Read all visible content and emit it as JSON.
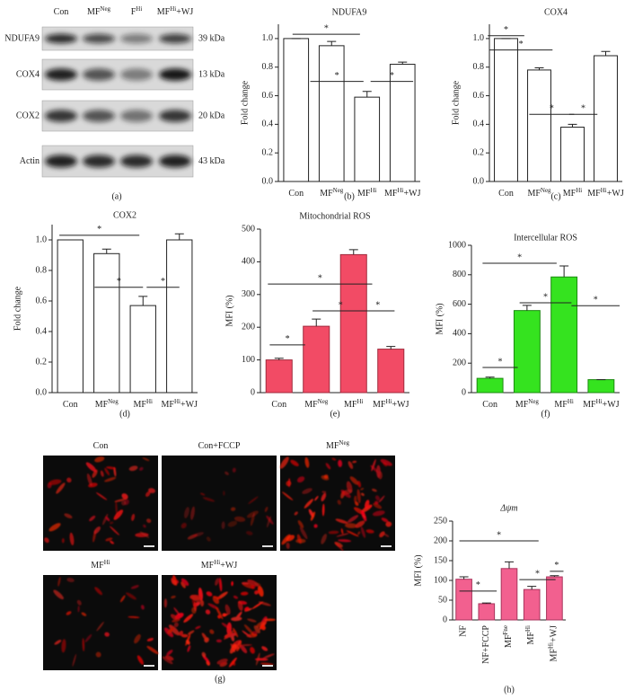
{
  "western_blot": {
    "panel": "(a)",
    "lanes": [
      {
        "base": "Con"
      },
      {
        "base": "MF",
        "sup": "Neg"
      },
      {
        "base": "F",
        "sup": "Hi"
      },
      {
        "base": "MF",
        "sup": "Hi",
        "rest": "+WJ"
      }
    ],
    "proteins": [
      "NDUFA9",
      "COX4",
      "COX2",
      "Actin"
    ],
    "sizes": [
      "39 kDa",
      "13 kDa",
      "20 kDa",
      "43 kDa"
    ]
  },
  "chart_data": [
    {
      "type": "bar",
      "panel": "(b)",
      "title": "NDUFA9",
      "ylabel": "Fold change",
      "categories": [
        {
          "base": "Con"
        },
        {
          "base": "MF",
          "sup": "Neg"
        },
        {
          "base": "MF",
          "sup": "Hi"
        },
        {
          "base": "MF",
          "sup": "Hi",
          "rest": "+WJ"
        }
      ],
      "values": [
        1.0,
        0.95,
        0.59,
        0.82
      ],
      "errors": [
        0,
        0.03,
        0.04,
        0.015
      ],
      "ylim": [
        0,
        1.1
      ],
      "yticks": [
        {
          "value": 0,
          "label": "0.0"
        },
        {
          "value": 0.2,
          "label": "0.2"
        },
        {
          "value": 0.4,
          "label": "0.4"
        },
        {
          "value": 0.6,
          "label": "0.6"
        },
        {
          "value": 0.8,
          "label": "0.8"
        },
        {
          "value": 1.0,
          "label": "1.0"
        }
      ],
      "color": "#ffffff",
      "edgecolor": "#222222",
      "annotations": [
        {
          "x1": -0.1,
          "x2": 1.8,
          "y": 1.03,
          "text": "*"
        },
        {
          "x1": 0.4,
          "x2": 1.9,
          "y": 0.7,
          "text": "*"
        },
        {
          "x1": 2.1,
          "x2": 3.3,
          "y": 0.7,
          "text": "*"
        }
      ]
    },
    {
      "type": "bar",
      "panel": "(c)",
      "title": "COX4",
      "ylabel": "Fold change",
      "categories": [
        {
          "base": "Con"
        },
        {
          "base": "MF",
          "sup": "Neg"
        },
        {
          "base": "MF",
          "sup": "Hi"
        },
        {
          "base": "MF",
          "sup": "Hi",
          "rest": "+WJ"
        }
      ],
      "values": [
        1.0,
        0.78,
        0.38,
        0.88
      ],
      "errors": [
        0,
        0.015,
        0.02,
        0.03
      ],
      "ylim": [
        0,
        1.1
      ],
      "yticks": [
        {
          "value": 0,
          "label": "0.0"
        },
        {
          "value": 0.2,
          "label": "0.2"
        },
        {
          "value": 0.4,
          "label": "0.4"
        },
        {
          "value": 0.6,
          "label": "0.6"
        },
        {
          "value": 0.8,
          "label": "0.8"
        },
        {
          "value": 1.0,
          "label": "1.0"
        }
      ],
      "color": "#ffffff",
      "edgecolor": "#222222",
      "annotations": [
        {
          "x1": -0.55,
          "x2": 0.55,
          "y": 1.02,
          "text": "*"
        },
        {
          "x1": -0.5,
          "x2": 1.4,
          "y": 0.92,
          "text": "*"
        },
        {
          "x1": 0.7,
          "x2": 2.05,
          "y": 0.47,
          "text": "*"
        },
        {
          "x1": 1.9,
          "x2": 2.75,
          "y": 0.47,
          "text": "*"
        }
      ]
    },
    {
      "type": "bar",
      "panel": "(d)",
      "title": "COX2",
      "ylabel": "Fold change",
      "categories": [
        {
          "base": "Con"
        },
        {
          "base": "MF",
          "sup": "Neg"
        },
        {
          "base": "MF",
          "sup": "Hi"
        },
        {
          "base": "MF",
          "sup": "Hi",
          "rest": "+WJ"
        }
      ],
      "values": [
        1.0,
        0.91,
        0.57,
        1.0
      ],
      "errors": [
        0,
        0.03,
        0.06,
        0.04
      ],
      "ylim": [
        0,
        1.1
      ],
      "yticks": [
        {
          "value": 0,
          "label": "0.0"
        },
        {
          "value": 0.2,
          "label": "0.2"
        },
        {
          "value": 0.4,
          "label": "0.4"
        },
        {
          "value": 0.6,
          "label": "0.6"
        },
        {
          "value": 0.8,
          "label": "0.8"
        },
        {
          "value": 1.0,
          "label": "1.0"
        }
      ],
      "color": "#ffffff",
      "edgecolor": "#222222",
      "annotations": [
        {
          "x1": -0.3,
          "x2": 1.9,
          "y": 1.03,
          "text": "*"
        },
        {
          "x1": 0.67,
          "x2": 2.0,
          "y": 0.69,
          "text": "*"
        },
        {
          "x1": 2.1,
          "x2": 3.0,
          "y": 0.69,
          "text": "*"
        }
      ]
    },
    {
      "type": "bar",
      "panel": "(e)",
      "title": "Mitochondrial ROS",
      "ylabel": "MFI (%)",
      "categories": [
        {
          "base": "Con"
        },
        {
          "base": "MF",
          "sup": "Neg"
        },
        {
          "base": "MF",
          "sup": "Hi"
        },
        {
          "base": "MF",
          "sup": "Hi",
          "rest": "+WJ"
        }
      ],
      "values": [
        100,
        203,
        422,
        133
      ],
      "errors": [
        5,
        22,
        15,
        8
      ],
      "ylim": [
        0,
        500
      ],
      "yticks": [
        0,
        100,
        200,
        300,
        400,
        500
      ],
      "color": "#f24b65",
      "edgecolor": "#a02a3c",
      "annotations": [
        {
          "x1": -0.3,
          "x2": 2.5,
          "y": 332,
          "text": "*"
        },
        {
          "x1": -0.25,
          "x2": 0.7,
          "y": 146,
          "text": "*"
        },
        {
          "x1": 0.9,
          "x2": 2.4,
          "y": 250,
          "text": "*"
        },
        {
          "x1": 2.2,
          "x2": 3.1,
          "y": 250,
          "text": "*"
        }
      ]
    },
    {
      "type": "bar",
      "panel": "(f)",
      "title": "Intercellular ROS",
      "ylabel": "MFI (%)",
      "categories": [
        {
          "base": "Con"
        },
        {
          "base": "MF",
          "sup": "Neg"
        },
        {
          "base": "MF",
          "sup": "Hi"
        },
        {
          "base": "MF",
          "sup": "Hi",
          "rest": "+WJ"
        }
      ],
      "values": [
        97,
        557,
        785,
        88
      ],
      "errors": [
        8,
        35,
        75,
        0
      ],
      "ylim": [
        0,
        1000
      ],
      "yticks": [
        0,
        200,
        400,
        600,
        800,
        1000
      ],
      "color": "#35e31f",
      "edgecolor": "#1c8a10",
      "annotations": [
        {
          "x1": -0.2,
          "x2": 1.8,
          "y": 878,
          "text": "*"
        },
        {
          "x1": -0.2,
          "x2": 0.75,
          "y": 171,
          "text": "*"
        },
        {
          "x1": 0.8,
          "x2": 2.2,
          "y": 610,
          "text": "*"
        },
        {
          "x1": 2.2,
          "x2": 3.5,
          "y": 590,
          "text": "*"
        }
      ]
    },
    {
      "type": "bar",
      "panel": "(h)",
      "title": "Δψm",
      "ylabel": "MFI (%)",
      "categories": [
        {
          "base": "NF"
        },
        {
          "base": "NF+FCCP"
        },
        {
          "base": "MF",
          "sup": "Fne"
        },
        {
          "base": "MF",
          "sup": "Hi"
        },
        {
          "base": "MF",
          "sup": "Hi",
          "rest": "+WJ"
        }
      ],
      "values": [
        103,
        41,
        130,
        77,
        109
      ],
      "errors": [
        6,
        2,
        17,
        8,
        3
      ],
      "ylim": [
        0,
        250
      ],
      "yticks": [
        0,
        50,
        100,
        150,
        200,
        250
      ],
      "color": "#f2608f",
      "edgecolor": "#a8345c",
      "annotations": [
        {
          "x1": -0.2,
          "x2": 3.3,
          "y": 200,
          "text": "*"
        },
        {
          "x1": -0.2,
          "x2": 1.45,
          "y": 73,
          "text": "*"
        },
        {
          "x1": 2.45,
          "x2": 4.05,
          "y": 102,
          "text": "*"
        },
        {
          "x1": 3.8,
          "x2": 4.4,
          "y": 123,
          "text": "*"
        }
      ]
    }
  ],
  "microscopy": {
    "panel": "(g)",
    "images": [
      {
        "base": "Con"
      },
      {
        "base": "Con+FCCP"
      },
      {
        "base": "MF",
        "sup": "Neg"
      },
      {
        "base": "MF",
        "sup": "Hi"
      },
      {
        "base": "MF",
        "sup": "Hi",
        "rest": "+WJ"
      }
    ]
  }
}
